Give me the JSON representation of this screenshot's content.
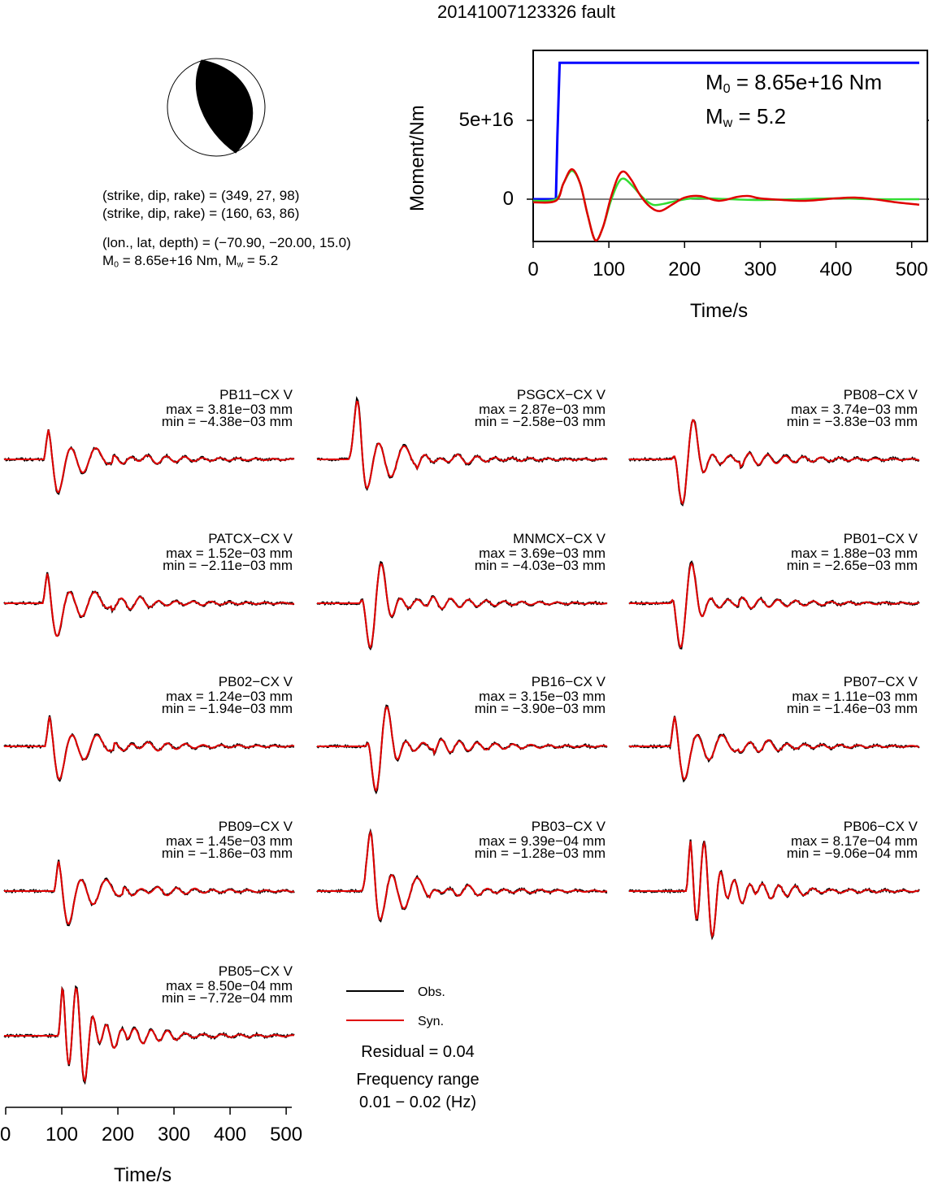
{
  "figure_title": "20141007123326 fault",
  "solution": {
    "plane1": "(strike, dip, rake) = (349, 27, 98)",
    "plane2": "(strike, dip, rake) = (160, 63, 86)",
    "location": "(lon., lat, depth) = (−70.90, −20.00, 15.0)",
    "m0_prefix": "M",
    "m0_sub": "0",
    "m0_text": " = 8.65e+16 Nm, M",
    "mw_sub": "w",
    "mw_text": " = 5.2"
  },
  "moment_panel": {
    "ylabel": "Moment/Nm",
    "xlabel": "Time/s",
    "m0_label": " = 8.65e+16 Nm",
    "mw_label": " = 5.2",
    "m_letter": "M",
    "sub0": "0",
    "subw": "w"
  },
  "waveform_axis": {
    "xlabel": "Time/s"
  },
  "legend": {
    "obs": "Obs.",
    "syn": "Syn.",
    "residual": "Residual = 0.04",
    "freq_line1": "Frequency range",
    "freq_line2": "0.01 − 0.02 (Hz)"
  },
  "colors": {
    "obs": "#000000",
    "syn": "#e00000",
    "moment": "#0000ff",
    "stf_green": "#33dd33"
  },
  "chart_data": [
    {
      "type": "line",
      "name": "moment-release",
      "xlabel": "Time/s",
      "ylabel": "Moment/Nm",
      "xlim": [
        0,
        510
      ],
      "ylim": [
        -2.8e+16,
        9.3e+16
      ],
      "x_ticks": [
        0,
        100,
        200,
        300,
        400,
        500
      ],
      "y_ticks": [
        0,
        5e+16
      ],
      "y_tick_labels": [
        "0",
        "5e+16"
      ],
      "series": [
        {
          "color": "#0000ff",
          "x": [
            0,
            30,
            32,
            35,
            510
          ],
          "y": [
            0,
            0,
            4e+16,
            8.65e+16,
            8.65e+16
          ]
        },
        {
          "color": "#33dd33",
          "x": [
            0,
            30,
            40,
            51,
            62,
            72,
            82,
            92,
            102,
            112,
            120,
            132,
            145,
            158,
            172,
            190,
            210,
            230,
            260,
            300,
            350,
            400,
            450,
            510
          ],
          "y": [
            -1000000000000000.0,
            0,
            1e+16,
            1.8e+16,
            1e+16,
            -1e+16,
            -2.6e+16,
            -1.8e+16,
            -2000000000000000.0,
            1e+16,
            1.3e+16,
            8000000000000000.0,
            1000000000000000.0,
            -3500000000000000.0,
            -3000000000000000.0,
            -1000000000000000.0,
            500000000000000.0,
            500000000000000.0,
            0,
            -500000000000000.0,
            0,
            500000000000000.0,
            0,
            0
          ]
        },
        {
          "color": "#e00000",
          "x": [
            0,
            30,
            40,
            51,
            62,
            72,
            82,
            92,
            102,
            112,
            120,
            130,
            142,
            155,
            168,
            185,
            200,
            220,
            245,
            270,
            285,
            300,
            330,
            360,
            400,
            425,
            450,
            480,
            510
          ],
          "y": [
            -2000000000000000.0,
            -1000000000000000.0,
            1e+16,
            1.9e+16,
            1e+16,
            -1e+16,
            -2.6e+16,
            -1.8e+16,
            0,
            1.4e+16,
            1.75e+16,
            1.2e+16,
            2000000000000000.0,
            -5000000000000000.0,
            -7500000000000000.0,
            -3000000000000000.0,
            1000000000000000.0,
            2000000000000000.0,
            -1000000000000000.0,
            1500000000000000.0,
            2000000000000000.0,
            500000000000000.0,
            -500000000000000.0,
            -1000000000000000.0,
            500000000000000.0,
            1000000000000000.0,
            0,
            -2000000000000000.0,
            -3500000000000000.0
          ]
        }
      ]
    },
    {
      "type": "line",
      "name": "waveform-fits",
      "xlim": [
        0,
        510
      ],
      "x_ticks": [
        0,
        100,
        200,
        300,
        400,
        500
      ],
      "stations": [
        {
          "name": "PB11−CX V",
          "max": "max = 3.81e−03 mm",
          "min": "min = −4.38e−03 mm",
          "onset": 70,
          "shape": "a",
          "seed": 1
        },
        {
          "name": "PSGCX−CX V",
          "max": "max = 2.87e−03 mm",
          "min": "min = −2.58e−03 mm",
          "onset": 55,
          "shape": "b",
          "seed": 2
        },
        {
          "name": "PB08−CX V",
          "max": "max = 3.74e−03 mm",
          "min": "min = −3.83e−03 mm",
          "onset": 75,
          "shape": "c",
          "seed": 3
        },
        {
          "name": "PATCX−CX V",
          "max": "max = 1.52e−03 mm",
          "min": "min = −2.11e−03 mm",
          "onset": 68,
          "shape": "a",
          "seed": 4
        },
        {
          "name": "MNMCX−CX V",
          "max": "max = 3.69e−03 mm",
          "min": "min = −4.03e−03 mm",
          "onset": 75,
          "shape": "c",
          "seed": 5
        },
        {
          "name": "PB01−CX V",
          "max": "max = 1.88e−03 mm",
          "min": "min = −2.65e−03 mm",
          "onset": 72,
          "shape": "c",
          "seed": 6
        },
        {
          "name": "PB02−CX V",
          "max": "max = 1.24e−03 mm",
          "min": "min = −1.94e−03 mm",
          "onset": 72,
          "shape": "a",
          "seed": 7
        },
        {
          "name": "PB16−CX V",
          "max": "max = 3.15e−03 mm",
          "min": "min = −3.90e−03 mm",
          "onset": 85,
          "shape": "c",
          "seed": 8
        },
        {
          "name": "PB07−CX V",
          "max": "max = 1.11e−03 mm",
          "min": "min = −1.46e−03 mm",
          "onset": 72,
          "shape": "a",
          "seed": 9
        },
        {
          "name": "PB09−CX V",
          "max": "max = 1.45e−03 mm",
          "min": "min = −1.86e−03 mm",
          "onset": 88,
          "shape": "a",
          "seed": 10
        },
        {
          "name": "PB03−CX V",
          "max": "max = 9.39e−04 mm",
          "min": "min = −1.28e−03 mm",
          "onset": 78,
          "shape": "b",
          "seed": 11
        },
        {
          "name": "PB06−CX V",
          "max": "max = 8.17e−04 mm",
          "min": "min = −9.06e−04 mm",
          "onset": 100,
          "shape": "d",
          "seed": 12
        },
        {
          "name": "PB05−CX V",
          "max": "max = 8.50e−04 mm",
          "min": "min = −7.72e−04 mm",
          "onset": 95,
          "shape": "d",
          "seed": 13
        }
      ]
    }
  ]
}
